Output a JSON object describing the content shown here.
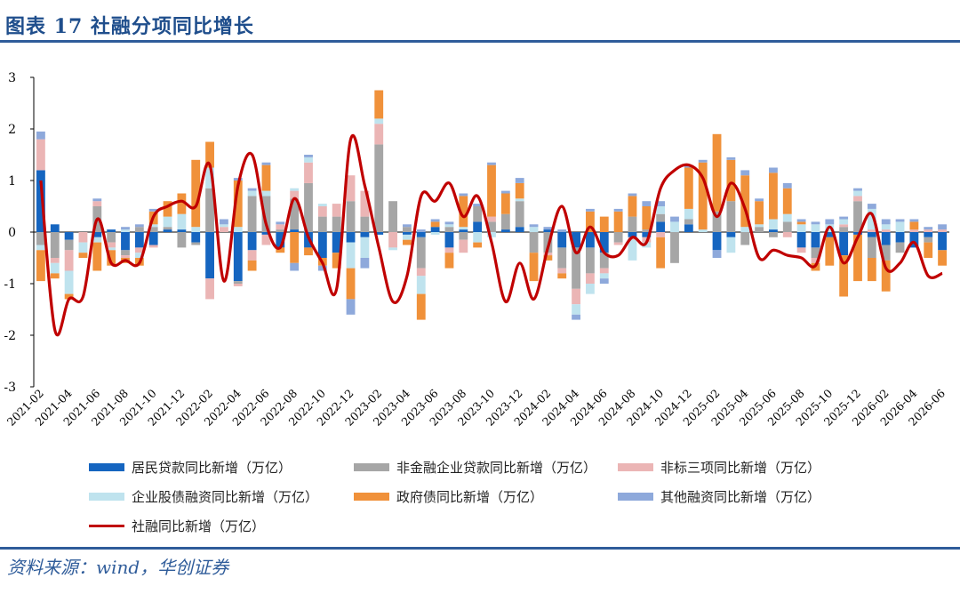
{
  "header": {
    "title": "图表 17 社融分项同比增长"
  },
  "footer": {
    "source": "资料来源：wind，华创证券"
  },
  "chart_data": {
    "type": "bar",
    "stacked": true,
    "ylim": [
      -3,
      3
    ],
    "yticks": [
      3,
      2,
      1,
      0,
      -1,
      -2,
      -3
    ],
    "x": [
      "2021-02",
      "2021-03",
      "2021-04",
      "2021-05",
      "2021-06",
      "2021-07",
      "2021-08",
      "2021-09",
      "2021-10",
      "2021-11",
      "2021-12",
      "2022-01",
      "2022-02",
      "2022-03",
      "2022-04",
      "2022-05",
      "2022-06",
      "2022-07",
      "2022-08",
      "2022-09",
      "2022-10",
      "2022-11",
      "2022-12",
      "2023-01",
      "2023-02",
      "2023-03",
      "2023-04",
      "2023-05",
      "2023-06",
      "2023-07",
      "2023-08",
      "2023-09",
      "2023-10",
      "2023-11",
      "2023-12",
      "2024-01",
      "2024-02",
      "2024-03",
      "2024-04",
      "2024-05",
      "2024-06",
      "2024-07",
      "2024-08",
      "2024-09",
      "2024-10",
      "2024-11",
      "2024-12",
      "2025-01",
      "2025-02",
      "2025-03",
      "2025-04",
      "2025-05",
      "2025-06",
      "2025-07",
      "2025-08",
      "2025-09",
      "2025-10",
      "2025-11",
      "2025-12",
      "2026-01",
      "2026-02",
      "2026-03",
      "2026-04",
      "2026-05",
      "2026-06"
    ],
    "xticklabels": [
      "2021-02",
      "2021-04",
      "2021-06",
      "2021-08",
      "2021-10",
      "2021-12",
      "2022-02",
      "2022-04",
      "2022-06",
      "2022-08",
      "2022-10",
      "2022-12",
      "2023-02",
      "2023-04",
      "2023-06",
      "2023-08",
      "2023-10",
      "2023-12",
      "2024-02",
      "2024-04",
      "2024-06",
      "2024-08",
      "2024-10",
      "2024-12",
      "2025-02",
      "2025-04",
      "2025-06",
      "2025-08",
      "2025-10",
      "2025-12",
      "2026-02",
      "2026-04",
      "2026-06"
    ],
    "series": [
      {
        "name": "居民贷款同比新增（万亿）",
        "kind": "bar",
        "color": "#1565c0",
        "values": [
          1.2,
          0.15,
          -0.15,
          0,
          -0.1,
          0.05,
          -0.35,
          -0.3,
          -0.25,
          0.05,
          0.05,
          -0.2,
          -0.9,
          0,
          -0.95,
          -0.35,
          -0.05,
          -0.3,
          0.05,
          -0.3,
          -0.5,
          -0.4,
          -0.2,
          -0.1,
          -0.05,
          0,
          -0.05,
          -0.1,
          0.1,
          -0.3,
          0.05,
          0.2,
          0,
          0.05,
          0.1,
          0,
          0.05,
          -0.3,
          -0.3,
          -0.3,
          -0.4,
          0,
          -0.1,
          -0.1,
          0.2,
          0,
          0.15,
          0,
          -0.35,
          -0.1,
          0,
          0,
          0.05,
          0,
          -0.3,
          -0.3,
          -0.1,
          -0.45,
          -0.05,
          -0.1,
          -0.25,
          -0.2,
          -0.3,
          -0.1,
          -0.35
        ]
      },
      {
        "name": "非金融企业贷款同比新增（万亿）",
        "kind": "bar",
        "color": "#a6a6a6",
        "values": [
          -0.25,
          -0.5,
          -0.2,
          0,
          0.5,
          -0.2,
          -0.1,
          0.1,
          0.1,
          0.05,
          -0.3,
          -0.05,
          0.85,
          0,
          -0.05,
          0.7,
          0.7,
          0.05,
          0.6,
          0.95,
          0.3,
          0.3,
          0.6,
          0.3,
          1.7,
          0.6,
          0.1,
          -0.6,
          0,
          0.1,
          -0.15,
          0.3,
          0.2,
          0.3,
          0.5,
          -0.4,
          -0.4,
          -0.4,
          -0.8,
          -0.5,
          -0.3,
          -0.2,
          0.3,
          0.05,
          0.15,
          -0.6,
          0.1,
          0,
          0.4,
          0.6,
          -0.25,
          0.1,
          -0.1,
          0.2,
          0,
          -0.2,
          0,
          0.1,
          0.6,
          -0.4,
          -0.3,
          -0.2,
          0,
          -0.1,
          0
        ],
        "note_for_nothing": ""
      },
      {
        "name": "非标三项同比新增（万亿）",
        "kind": "bar",
        "color": "#ebb5b5",
        "values": [
          0.6,
          -0.1,
          -0.4,
          -0.2,
          0.1,
          -0.1,
          -0.05,
          -0.1,
          -0.05,
          0,
          0,
          0,
          -0.4,
          0.1,
          -0.05,
          -0.2,
          -0.2,
          0.1,
          0.15,
          0.4,
          0.2,
          0.25,
          0.5,
          0.5,
          0.4,
          -0.3,
          0,
          -0.15,
          0,
          -0.1,
          -0.25,
          0,
          0.1,
          0,
          0,
          0,
          -0.05,
          -0.1,
          -0.3,
          -0.2,
          -0.1,
          -0.05,
          -0.05,
          -0.1,
          -0.1,
          0,
          0,
          0,
          0,
          0,
          0,
          0,
          0,
          -0.1,
          -0.1,
          -0.1,
          0,
          0.05,
          0.1,
          0.05,
          0.05,
          0,
          0.05,
          0.05,
          0.05
        ]
      },
      {
        "name": "企业股债融资同比新增（万亿）",
        "kind": "bar",
        "color": "#bfe3ee",
        "values": [
          -0.1,
          -0.2,
          -0.45,
          -0.2,
          -0.1,
          -0.05,
          0.05,
          -0.1,
          0.05,
          0.2,
          0.3,
          0.1,
          0.4,
          0.05,
          0.1,
          0.1,
          0.1,
          0,
          0.05,
          0.1,
          0.05,
          0,
          -0.5,
          -0.4,
          0.1,
          -0.05,
          -0.1,
          -0.35,
          -0.05,
          0.05,
          0.05,
          -0.2,
          -0.1,
          0,
          0.05,
          0.1,
          0,
          0,
          -0.2,
          -0.2,
          -0.1,
          0,
          -0.4,
          -0.1,
          0.15,
          0.2,
          0.2,
          0.05,
          0,
          -0.3,
          0.1,
          0.05,
          0.2,
          0.15,
          0.15,
          0.15,
          0.15,
          0.1,
          0.1,
          0.4,
          0.1,
          0.2,
          0,
          0,
          0
        ],
        "note": ""
      },
      {
        "name": "政府债同比新增（万亿）",
        "kind": "bar",
        "color": "#f0913a",
        "values": [
          -0.6,
          -0.1,
          -0.1,
          -0.1,
          -0.55,
          -0.3,
          -0.1,
          -0.15,
          0.25,
          0.3,
          0.4,
          1.3,
          0.5,
          0,
          0.9,
          -0.2,
          0.5,
          -0.1,
          -0.6,
          -0.15,
          -0.15,
          -0.3,
          -0.6,
          0,
          0.55,
          0,
          -0.1,
          -0.5,
          0.1,
          -0.3,
          0.6,
          -0.1,
          1,
          0.4,
          0.3,
          -0.55,
          -0.1,
          -0.1,
          0,
          0.4,
          0.3,
          0.4,
          0.4,
          0.45,
          -0.6,
          0,
          0.8,
          1.3,
          1.5,
          0.8,
          1,
          0.45,
          0.9,
          0.5,
          0.05,
          -0.15,
          -0.55,
          -0.8,
          -0.9,
          -0.45,
          -0.6,
          0,
          0.15,
          -0.3,
          -0.3
        ],
        "note2": ""
      },
      {
        "name": "其他融资同比新增（万亿）",
        "kind": "bar",
        "color": "#8ea9db",
        "values": [
          0.15,
          0,
          0,
          0,
          0.05,
          0,
          0.05,
          0.05,
          0.05,
          0,
          0,
          0,
          0,
          0.1,
          0.05,
          0.05,
          0.05,
          0.05,
          -0.15,
          0.05,
          -0.1,
          0,
          -0.3,
          -0.2,
          0,
          0,
          0.05,
          0.05,
          0.05,
          0.05,
          0.05,
          0.05,
          0.05,
          0.05,
          0.1,
          0.05,
          0.05,
          0.05,
          -0.1,
          0.05,
          -0.1,
          0.05,
          0.05,
          0.1,
          0.1,
          0.1,
          0.05,
          0.05,
          -0.15,
          0.05,
          0.1,
          0.05,
          0.1,
          0.1,
          0.05,
          0.05,
          0.1,
          0.05,
          0.05,
          0.1,
          0.1,
          0.05,
          0.05,
          0.05,
          0.1
        ]
      },
      {
        "name": "社融同比新增（万亿）",
        "kind": "line",
        "color": "#c00000",
        "values": [
          1,
          -1.9,
          -1.3,
          -1.25,
          0.25,
          -0.6,
          -0.55,
          -0.6,
          0.3,
          0.5,
          0.6,
          0.5,
          1.3,
          -0.95,
          0.9,
          1.5,
          0.15,
          -0.3,
          0.65,
          -0.1,
          -0.6,
          -1.1,
          1.8,
          0.9,
          -0.3,
          -1.35,
          -0.85,
          0.7,
          0.6,
          0.95,
          0.3,
          0.7,
          -0.2,
          -1.35,
          -0.6,
          -1.3,
          -0.3,
          0.5,
          -0.4,
          0.1,
          -0.4,
          -0.45,
          -0.1,
          -0.2,
          0.85,
          1.2,
          1.3,
          1.05,
          0.3,
          0.95,
          0.45,
          -0.5,
          -0.35,
          -0.45,
          -0.5,
          -0.65,
          0.1,
          -0.6,
          -0.1,
          0.35,
          -0.7,
          -0.6,
          -0.2,
          -0.85,
          -0.8
        ]
      }
    ],
    "legend_position": "bottom"
  }
}
